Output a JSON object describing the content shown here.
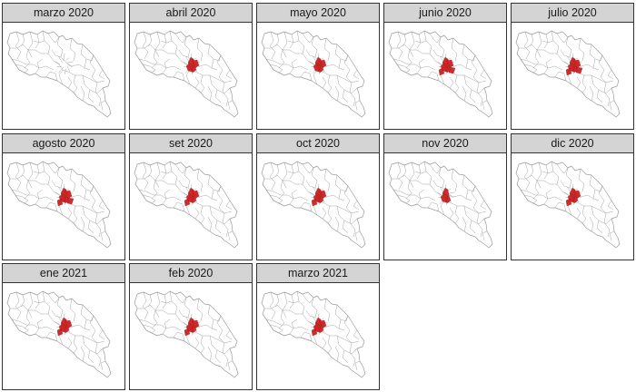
{
  "panels": [
    {
      "label": "marzo 2020",
      "level": 0
    },
    {
      "label": "abril 2020",
      "level": 2
    },
    {
      "label": "mayo 2020",
      "level": 2
    },
    {
      "label": "junio 2020",
      "level": 4
    },
    {
      "label": "julio 2020",
      "level": 4
    },
    {
      "label": "agosto 2020",
      "level": 4
    },
    {
      "label": "set 2020",
      "level": 3
    },
    {
      "label": "oct 2020",
      "level": 3
    },
    {
      "label": "nov 2020",
      "level": 1
    },
    {
      "label": "dic 2020",
      "level": 3
    },
    {
      "label": "ene 2021",
      "level": 3
    },
    {
      "label": "feb 2020",
      "level": 3
    },
    {
      "label": "marzo 2021",
      "level": 3
    }
  ],
  "colors": {
    "highlight": "#cc2222",
    "district_border": "#9a9a9a",
    "strip_background": "#d4d4d4"
  }
}
